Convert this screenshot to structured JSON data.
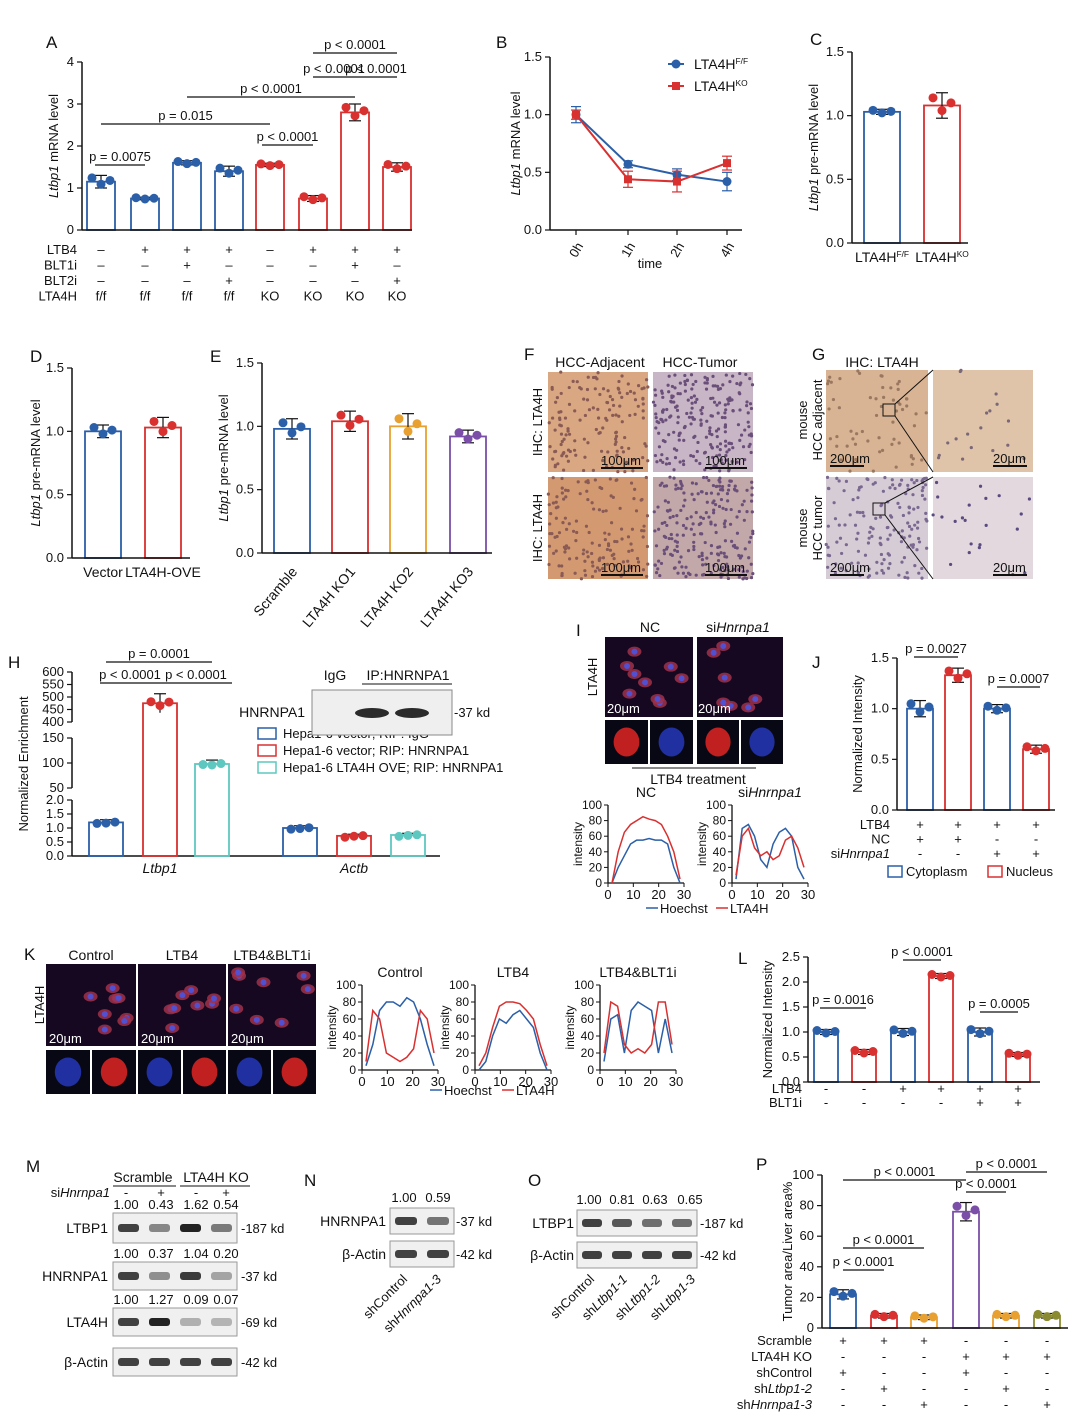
{
  "panel_letters": [
    "A",
    "B",
    "C",
    "D",
    "E",
    "F",
    "G",
    "H",
    "I",
    "J",
    "K",
    "L",
    "M",
    "N",
    "O",
    "P"
  ],
  "chart_data": [
    {
      "id": "A",
      "type": "bar",
      "ylabel": "Ltbp1 mRNA level",
      "ylim": [
        0,
        4
      ],
      "yticks": [
        0,
        1,
        2,
        3,
        4
      ],
      "values": [
        1.15,
        0.75,
        1.6,
        1.4,
        1.55,
        0.75,
        2.8,
        1.5
      ],
      "errors": [
        0.15,
        0.03,
        0.05,
        0.12,
        0.04,
        0.07,
        0.2,
        0.1
      ],
      "colors": [
        "#2b5fa8",
        "#2b5fa8",
        "#2b5fa8",
        "#2b5fa8",
        "#d93030",
        "#d93030",
        "#d93030",
        "#d93030"
      ],
      "condition_rows": [
        {
          "label": "LTB4",
          "values": [
            "–",
            "+",
            "+",
            "+",
            "–",
            "+",
            "+",
            "+"
          ]
        },
        {
          "label": "BLT1i",
          "values": [
            "–",
            "–",
            "+",
            "–",
            "–",
            "–",
            "+",
            "–"
          ]
        },
        {
          "label": "BLT2i",
          "values": [
            "–",
            "–",
            "–",
            "+",
            "–",
            "–",
            "–",
            "+"
          ]
        },
        {
          "label": "LTA4H",
          "values": [
            "f/f",
            "f/f",
            "f/f",
            "f/f",
            "KO",
            "KO",
            "KO",
            "KO"
          ]
        }
      ],
      "annotations": [
        "p = 0.0075",
        "p = 0.015",
        "p < 0.0001",
        "p < 0.0001",
        "p < 0.0001",
        "p < 0.0001",
        "p < 0.0001"
      ]
    },
    {
      "id": "B",
      "type": "line",
      "ylabel": "Ltbp1 mRNA level",
      "xlabel": "time",
      "ylim": [
        0,
        1.5
      ],
      "yticks": [
        "0.0",
        "0.5",
        "1.0",
        "1.5"
      ],
      "categories": [
        "0h",
        "1h",
        "2h",
        "4h"
      ],
      "series": [
        {
          "name": "LTA4H",
          "sup": "F/F",
          "color": "#2b5fa8",
          "values": [
            1.0,
            0.57,
            0.48,
            0.42
          ],
          "errors": [
            0.07,
            0.03,
            0.05,
            0.08
          ]
        },
        {
          "name": "LTA4H",
          "sup": "KO",
          "color": "#d93030",
          "values": [
            1.0,
            0.44,
            0.42,
            0.58
          ],
          "errors": [
            0.04,
            0.07,
            0.09,
            0.06
          ]
        }
      ]
    },
    {
      "id": "C",
      "type": "bar",
      "ylabel": "Ltbp1 pre-mRNA level",
      "ylim": [
        0,
        1.5
      ],
      "yticks": [
        "0.0",
        "0.5",
        "1.0",
        "1.5"
      ],
      "categories": [
        {
          "base": "LTA4H",
          "sup": "F/F"
        },
        {
          "base": "LTA4H",
          "sup": "KO"
        }
      ],
      "values": [
        1.03,
        1.08
      ],
      "errors": [
        0.02,
        0.1
      ],
      "colors": [
        "#2b5fa8",
        "#d93030"
      ]
    },
    {
      "id": "D",
      "type": "bar",
      "ylabel": "Ltbp1 pre-mRNA level",
      "ylim": [
        0,
        1.5
      ],
      "yticks": [
        "0.0",
        "0.5",
        "1.0",
        "1.5"
      ],
      "categories": [
        "Vector",
        "LTA4H-OVE"
      ],
      "values": [
        1.0,
        1.03
      ],
      "errors": [
        0.05,
        0.08
      ],
      "colors": [
        "#2b5fa8",
        "#d93030"
      ]
    },
    {
      "id": "E",
      "type": "bar",
      "ylabel": "Ltbp1 pre-mRNA level",
      "ylim": [
        0,
        1.5
      ],
      "yticks": [
        "0.0",
        "0.5",
        "1.0",
        "1.5"
      ],
      "categories": [
        "Scramble",
        "LTA4H KO1",
        "LTA4H KO2",
        "LTA4H KO3"
      ],
      "values": [
        0.98,
        1.04,
        1.0,
        0.92
      ],
      "errors": [
        0.08,
        0.08,
        0.1,
        0.05
      ],
      "colors": [
        "#2b5fa8",
        "#d93030",
        "#e8a030",
        "#7b4fa8"
      ]
    },
    {
      "id": "H",
      "type": "bar",
      "ylabel": "Normalized Enrichment",
      "yticks": [
        "0.0",
        "0.5",
        "1.0",
        "1.5",
        "2.0",
        "50",
        "100",
        "150",
        "400",
        "450",
        "500",
        "550",
        "600"
      ],
      "groups": [
        "Ltbp1",
        "Actb"
      ],
      "series": [
        {
          "name": "Hepa1-6 vector; RIP: IgG",
          "color": "#2b5fa8",
          "values": [
            1.2,
            1.0
          ]
        },
        {
          "name": "Hepa1-6 vector; RIP: HNRNPA1",
          "color": "#d93030",
          "values": [
            475,
            0.72
          ]
        },
        {
          "name": "Hepa1-6 LTA4H OVE; RIP: HNRNPA1",
          "color": "#5ec8c0",
          "values": [
            98,
            0.75
          ]
        }
      ],
      "annotations": [
        "p = 0.0001",
        "p < 0.0001",
        "p < 0.0001"
      ]
    },
    {
      "id": "J",
      "type": "bar",
      "ylabel": "Normalized Intensity",
      "ylim": [
        0,
        1.5
      ],
      "yticks": [
        "0.0",
        "0.5",
        "1.0",
        "1.5"
      ],
      "values": [
        1.0,
        1.33,
        1.0,
        0.6
      ],
      "errors": [
        0.08,
        0.07,
        0.04,
        0.04
      ],
      "colors": [
        "#2b5fa8",
        "#d93030",
        "#2b5fa8",
        "#d93030"
      ],
      "condition_rows": [
        {
          "label": "LTB4",
          "values": [
            "+",
            "+",
            "+",
            "+"
          ]
        },
        {
          "label": "NC",
          "values": [
            "+",
            "+",
            "-",
            "-"
          ]
        },
        {
          "label": "siHnrnpa1",
          "label_base": "si",
          "label_it": "Hnrnpa1",
          "values": [
            "-",
            "-",
            "+",
            "+"
          ]
        }
      ],
      "legend": [
        "Cytoplasm",
        "Nucleus"
      ],
      "annotations": [
        "p = 0.0027",
        "p = 0.0007"
      ]
    },
    {
      "id": "L",
      "type": "bar",
      "ylabel": "Normalized Intensity",
      "ylim": [
        0,
        2.5
      ],
      "yticks": [
        "0.0",
        "0.5",
        "1.0",
        "1.5",
        "2.0",
        "2.5"
      ],
      "values": [
        1.0,
        0.6,
        1.0,
        2.12,
        1.0,
        0.55
      ],
      "errors": [
        0.05,
        0.05,
        0.07,
        0.05,
        0.08,
        0.04
      ],
      "colors": [
        "#2b5fa8",
        "#d93030",
        "#2b5fa8",
        "#d93030",
        "#2b5fa8",
        "#d93030"
      ],
      "condition_rows": [
        {
          "label": "LTB4",
          "values": [
            "-",
            "-",
            "+",
            "+",
            "+",
            "+"
          ]
        },
        {
          "label": "BLT1i",
          "values": [
            "-",
            "-",
            "-",
            "-",
            "+",
            "+"
          ]
        }
      ],
      "annotations": [
        "p = 0.0016",
        "p < 0.0001",
        "p = 0.0005"
      ]
    },
    {
      "id": "P",
      "type": "bar",
      "ylabel": "Tumor area/Liver area%",
      "ylim": [
        0,
        100
      ],
      "yticks": [
        0,
        20,
        40,
        60,
        80,
        100
      ],
      "values": [
        22,
        8,
        7,
        76,
        8,
        8
      ],
      "errors": [
        3,
        1.5,
        1.5,
        6,
        1.5,
        1.5
      ],
      "colors": [
        "#2b5fa8",
        "#d93030",
        "#e8a030",
        "#7b4fa8",
        "#e8a030",
        "#8a8a30"
      ],
      "condition_rows": [
        {
          "label": "Scramble",
          "values": [
            "+",
            "+",
            "+",
            "-",
            "-",
            "-"
          ]
        },
        {
          "label": "LTA4H KO",
          "values": [
            "-",
            "-",
            "-",
            "+",
            "+",
            "+"
          ]
        },
        {
          "label": "shControl",
          "values": [
            "+",
            "-",
            "-",
            "+",
            "-",
            "-"
          ]
        },
        {
          "label": "shLtbp1-2",
          "label_base": "sh",
          "label_it": "Ltbp1-2",
          "values": [
            "-",
            "+",
            "-",
            "-",
            "+",
            "-"
          ]
        },
        {
          "label": "shHnrnpa1-3",
          "label_base": "sh",
          "label_it": "Hnrnpa1-3",
          "values": [
            "-",
            "-",
            "+",
            "-",
            "-",
            "+"
          ]
        }
      ],
      "annotations": [
        "p < 0.0001",
        "p < 0.0001",
        "p < 0.0001",
        "p < 0.0001",
        "p < 0.0001"
      ]
    },
    {
      "id": "I_profiles",
      "type": "line",
      "ylabel": "intensity",
      "ylim": [
        0,
        100
      ],
      "yticks": [
        0,
        20,
        40,
        60,
        80,
        100
      ],
      "xticks": [
        0,
        10,
        20,
        30
      ],
      "plots": [
        {
          "title": "NC",
          "hoechst": [
            0,
            20,
            35,
            50,
            55,
            55,
            57,
            55,
            55,
            50,
            20,
            0
          ],
          "lta4h": [
            0,
            40,
            65,
            75,
            80,
            85,
            82,
            80,
            75,
            60,
            40,
            5
          ]
        },
        {
          "title": "siHnrnpa1",
          "title_base": "si",
          "title_it": "Hnrnpa1",
          "hoechst": [
            5,
            70,
            75,
            60,
            30,
            20,
            50,
            65,
            70,
            60,
            20,
            5
          ],
          "lta4h": [
            10,
            60,
            70,
            45,
            35,
            40,
            30,
            35,
            55,
            60,
            45,
            20
          ]
        }
      ],
      "legend": [
        "Hoechst",
        "LTA4H"
      ]
    },
    {
      "id": "K_profiles",
      "type": "line",
      "ylabel": "intensity",
      "ylim": [
        0,
        100
      ],
      "yticks": [
        0,
        20,
        40,
        60,
        80,
        100
      ],
      "xticks": [
        0,
        10,
        20,
        30
      ],
      "plots": [
        {
          "title": "Control",
          "hoechst": [
            5,
            30,
            70,
            80,
            80,
            75,
            85,
            80,
            60,
            30,
            5
          ],
          "lta4h": [
            10,
            70,
            60,
            20,
            15,
            10,
            15,
            25,
            70,
            60,
            20
          ]
        },
        {
          "title": "LTB4",
          "hoechst": [
            0,
            10,
            40,
            60,
            55,
            65,
            70,
            60,
            50,
            20,
            0
          ],
          "lta4h": [
            5,
            20,
            50,
            75,
            80,
            80,
            78,
            70,
            60,
            30,
            5
          ]
        },
        {
          "title": "LTB4&BLT1i",
          "hoechst": [
            10,
            60,
            65,
            20,
            70,
            80,
            75,
            70,
            20,
            60,
            20
          ],
          "lta4h": [
            20,
            80,
            75,
            30,
            20,
            25,
            20,
            30,
            80,
            80,
            30
          ]
        }
      ],
      "legend": [
        "Hoechst",
        "LTA4H"
      ]
    }
  ],
  "micrographs": {
    "F": {
      "headers": [
        "HCC-Adjacent",
        "HCC-Tumor"
      ],
      "row_label": "IHC: LTA4H",
      "scale": "100μm"
    },
    "G": {
      "title": "IHC: LTA4H",
      "row_labels": [
        "mouse HCC adjacent",
        "mouse HCC tumor"
      ],
      "scale_big": "200μm",
      "scale_small": "20μm"
    },
    "I": {
      "headers": [
        "NC",
        "siHnrnpa1"
      ],
      "row_label": "LTA4H",
      "scale": "20μm",
      "caption": "LTB4 treatment"
    },
    "K": {
      "headers": [
        "Control",
        "LTB4",
        "LTB4&BLT1i"
      ],
      "row_label": "LTA4H",
      "scale": "20μm"
    }
  },
  "blots": {
    "H": {
      "lanes": [
        "IgG",
        "IP:HNRNPA1"
      ],
      "protein": "HNRNPA1",
      "size": "-37 kd"
    },
    "M": {
      "groups": [
        "Scramble",
        "LTA4H KO"
      ],
      "si_row": [
        "-",
        "+",
        "-",
        "+"
      ],
      "si_label_base": "si",
      "si_label_it": "Hnrnpa1",
      "rows": [
        {
          "protein": "LTBP1",
          "size": "-187 kd",
          "quant": [
            "1.00",
            "0.43",
            "1.62",
            "0.54"
          ]
        },
        {
          "protein": "HNRNPA1",
          "size": "-37 kd",
          "quant": [
            "1.00",
            "0.37",
            "1.04",
            "0.20"
          ]
        },
        {
          "protein": "LTA4H",
          "size": "-69 kd",
          "quant": [
            "1.00",
            "1.27",
            "0.09",
            "0.07"
          ]
        },
        {
          "protein": "β-Actin",
          "size": "-42 kd",
          "quant": []
        }
      ]
    },
    "N": {
      "lanes": [
        {
          "base": "shControl",
          "it": ""
        },
        {
          "base": "sh",
          "it": "Hnrnpa1-3"
        }
      ],
      "rows": [
        {
          "protein": "HNRNPA1",
          "size": "-37 kd",
          "quant": [
            "1.00",
            "0.59"
          ]
        },
        {
          "protein": "β-Actin",
          "size": "-42 kd",
          "quant": []
        }
      ]
    },
    "O": {
      "lanes": [
        {
          "base": "shControl",
          "it": ""
        },
        {
          "base": "sh",
          "it": "Ltbp1-1"
        },
        {
          "base": "sh",
          "it": "Ltbp1-2"
        },
        {
          "base": "sh",
          "it": "Ltbp1-3"
        }
      ],
      "rows": [
        {
          "protein": "LTBP1",
          "size": "-187 kd",
          "quant": [
            "1.00",
            "0.81",
            "0.63",
            "0.65"
          ]
        },
        {
          "protein": "β-Actin",
          "size": "-42 kd",
          "quant": []
        }
      ]
    }
  }
}
